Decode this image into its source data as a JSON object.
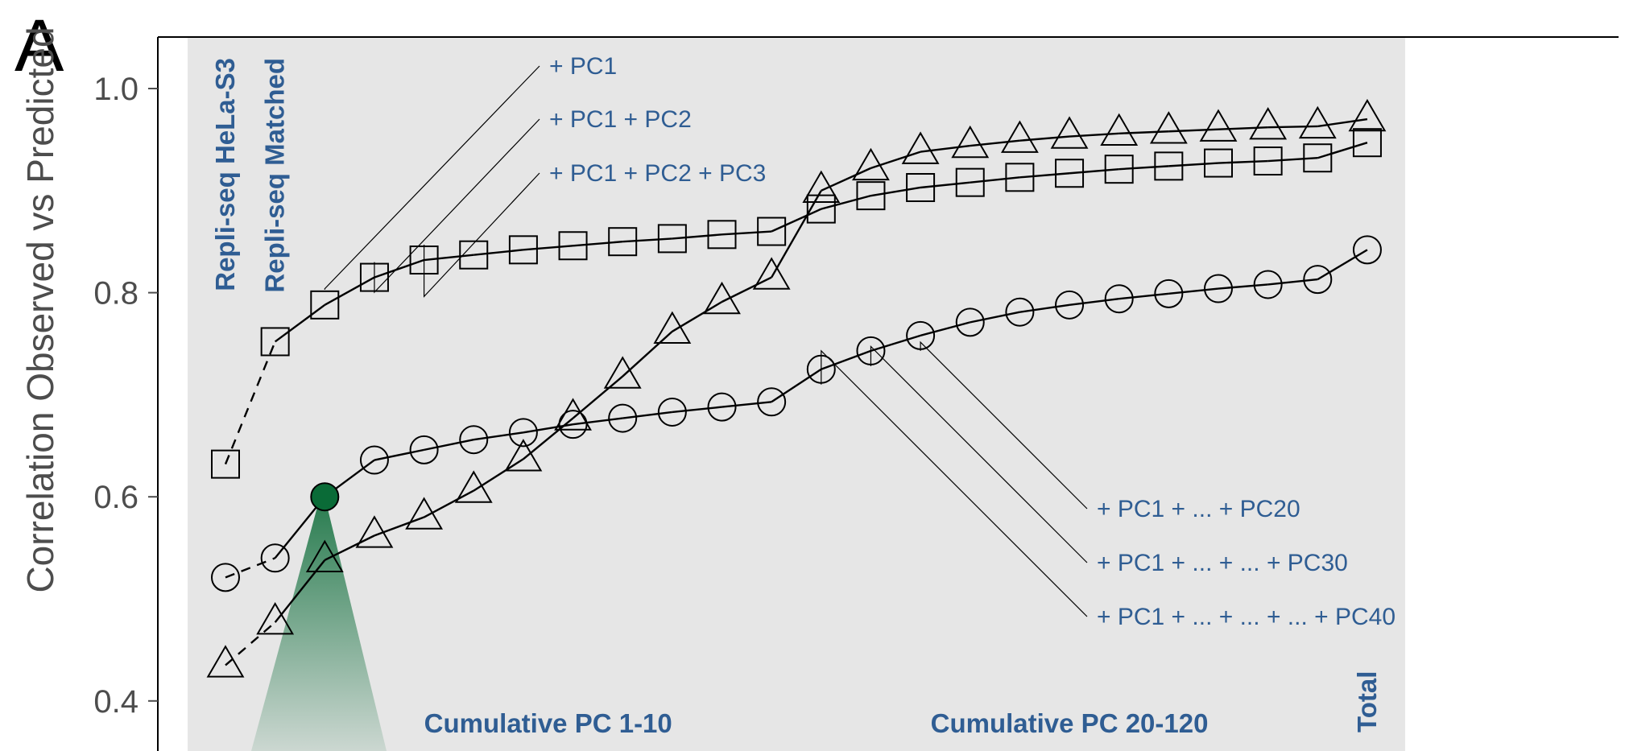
{
  "panel_letter": "A",
  "chart_data": {
    "type": "line",
    "ylabel": "Correlation Observed vs Predicted",
    "xlabel": "",
    "ylim": [
      0.35,
      1.05
    ],
    "yticks": [
      0.4,
      0.6,
      0.8,
      1.0
    ],
    "ytick_labels": [
      "0.4",
      "0.6",
      "0.8",
      "1.0"
    ],
    "bands": [
      {
        "label": "Repli-seq HeLa-S3",
        "orientation": "vertical",
        "from": 1,
        "to": 1
      },
      {
        "label": "Repli-seq Matched",
        "orientation": "vertical",
        "from": 2,
        "to": 2
      },
      {
        "label": "Cumulative PC 1-10",
        "orientation": "horizontal",
        "from": 3,
        "to": 12
      },
      {
        "label": "Cumulative PC 20-120",
        "orientation": "horizontal",
        "from": 13,
        "to": 23
      },
      {
        "label": "Total",
        "orientation": "vertical",
        "from": 24,
        "to": 24
      }
    ],
    "series": [
      {
        "marker": "square",
        "x": [
          1,
          2,
          3,
          4,
          5,
          6,
          7,
          8,
          9,
          10,
          11,
          12,
          13,
          14,
          15,
          16,
          17,
          18,
          19,
          20,
          21,
          22,
          23,
          24
        ],
        "values": [
          0.632,
          0.752,
          0.788,
          0.815,
          0.832,
          0.837,
          0.842,
          0.846,
          0.85,
          0.853,
          0.857,
          0.86,
          0.882,
          0.895,
          0.903,
          0.908,
          0.913,
          0.917,
          0.921,
          0.924,
          0.927,
          0.929,
          0.932,
          0.947
        ],
        "dashed_until": 2
      },
      {
        "marker": "circle",
        "x": [
          1,
          2,
          3,
          4,
          5,
          6,
          7,
          8,
          9,
          10,
          11,
          12,
          13,
          14,
          15,
          16,
          17,
          18,
          19,
          20,
          21,
          22,
          23,
          24
        ],
        "values": [
          0.521,
          0.54,
          0.6,
          0.636,
          0.646,
          0.656,
          0.663,
          0.671,
          0.677,
          0.683,
          0.688,
          0.693,
          0.725,
          0.743,
          0.758,
          0.771,
          0.781,
          0.788,
          0.794,
          0.799,
          0.804,
          0.808,
          0.813,
          0.842
        ],
        "dashed_until": 2,
        "highlight_index": 2,
        "highlight_color": "#0a6b37"
      },
      {
        "marker": "triangle",
        "x": [
          1,
          2,
          3,
          4,
          5,
          6,
          7,
          8,
          9,
          10,
          11,
          12,
          13,
          14,
          15,
          16,
          17,
          18,
          19,
          20,
          21,
          22,
          23,
          24
        ],
        "values": [
          0.435,
          0.477,
          0.538,
          0.562,
          0.58,
          0.606,
          0.637,
          0.677,
          0.718,
          0.762,
          0.791,
          0.815,
          0.9,
          0.922,
          0.938,
          0.944,
          0.949,
          0.953,
          0.956,
          0.958,
          0.96,
          0.962,
          0.963,
          0.97
        ],
        "dashed_until": 2
      }
    ],
    "annotations": [
      {
        "text": "+ PC1",
        "series": "square",
        "index": 2,
        "side": "top"
      },
      {
        "text": "+ PC1 + PC2",
        "series": "square",
        "index": 3,
        "side": "top"
      },
      {
        "text": "+ PC1 + PC2 + PC3",
        "series": "square",
        "index": 4,
        "side": "top"
      },
      {
        "text": "+ PC1 + ... + PC20",
        "series": "circle",
        "index": 14,
        "side": "bottom"
      },
      {
        "text": "+ PC1 + ... + ... + PC30",
        "series": "circle",
        "index": 13,
        "side": "bottom"
      },
      {
        "text": "+ PC1 + ... + ... + ... + PC40",
        "series": "circle",
        "index": 12,
        "side": "bottom"
      }
    ],
    "colors": {
      "band": "#e6e6e6",
      "text_blue": "#2f5d93",
      "line": "#000000",
      "highlight": "#0a6b37"
    }
  }
}
